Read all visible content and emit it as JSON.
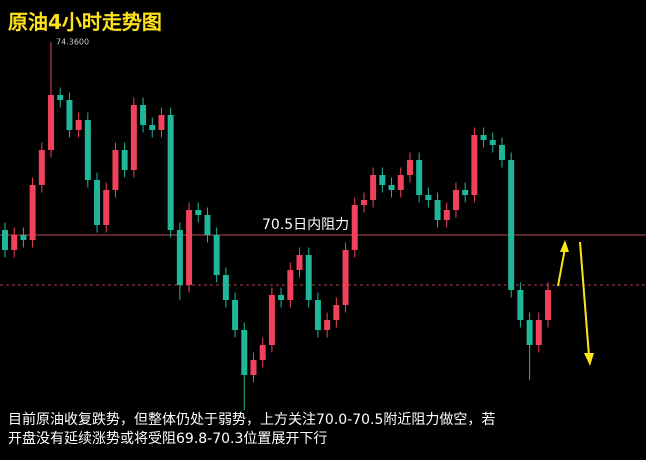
{
  "chart_data": {
    "type": "candlestick",
    "title": "原油4小时走势图",
    "ylim": [
      67,
      75.2
    ],
    "up_color": "#f0425d",
    "down_color": "#1fb69a",
    "open": [
      70.6,
      70.2,
      70.5,
      70.4,
      71.5,
      72.2,
      73.3,
      73.2,
      72.6,
      72.8,
      71.6,
      70.7,
      71.4,
      72.2,
      71.8,
      73.1,
      72.7,
      72.6,
      72.9,
      70.6,
      69.5,
      71.0,
      70.9,
      70.5,
      69.7,
      69.2,
      68.6,
      67.7,
      68.0,
      68.3,
      69.3,
      69.2,
      69.8,
      70.1,
      69.2,
      68.6,
      68.8,
      69.1,
      70.2,
      71.1,
      71.2,
      71.7,
      71.5,
      71.4,
      71.7,
      72.0,
      71.3,
      71.2,
      70.8,
      71.0,
      71.4,
      71.3,
      72.5,
      72.4,
      72.3,
      72.0,
      69.4,
      68.8,
      68.3,
      68.8
    ],
    "high": [
      70.75,
      70.65,
      70.65,
      71.65,
      72.35,
      74.36,
      73.45,
      73.35,
      72.95,
      72.95,
      71.75,
      71.55,
      72.35,
      72.35,
      73.25,
      73.25,
      72.85,
      73.05,
      73.05,
      70.75,
      71.15,
      71.15,
      71.05,
      70.65,
      69.85,
      69.35,
      68.75,
      68.15,
      68.45,
      69.45,
      69.45,
      69.95,
      70.25,
      70.25,
      69.35,
      68.95,
      69.25,
      70.35,
      71.25,
      71.35,
      71.85,
      71.85,
      71.65,
      71.85,
      72.15,
      72.15,
      71.45,
      71.35,
      71.15,
      71.55,
      71.55,
      72.65,
      72.65,
      72.55,
      72.45,
      72.15,
      69.55,
      68.95,
      68.95,
      69.55
    ],
    "low": [
      70.05,
      70.05,
      70.25,
      70.25,
      71.35,
      72.05,
      73.05,
      72.45,
      72.45,
      71.45,
      70.55,
      70.55,
      71.25,
      71.65,
      71.65,
      72.55,
      72.45,
      72.45,
      70.45,
      69.2,
      69.35,
      70.75,
      70.35,
      69.55,
      69.05,
      68.45,
      67.0,
      67.55,
      67.85,
      68.15,
      69.05,
      69.05,
      69.65,
      69.05,
      68.45,
      68.45,
      68.65,
      68.95,
      70.05,
      70.95,
      71.05,
      71.35,
      71.25,
      71.25,
      71.55,
      71.15,
      71.05,
      70.65,
      70.65,
      70.85,
      71.15,
      71.15,
      72.25,
      72.15,
      71.85,
      69.25,
      68.65,
      67.6,
      68.15,
      68.65
    ],
    "close": [
      70.2,
      70.5,
      70.4,
      71.5,
      72.2,
      73.3,
      73.2,
      72.6,
      72.8,
      71.6,
      70.7,
      71.4,
      72.2,
      71.8,
      73.1,
      72.7,
      72.6,
      72.9,
      70.6,
      69.5,
      71.0,
      70.9,
      70.5,
      69.7,
      69.2,
      68.6,
      67.7,
      68.0,
      68.3,
      69.3,
      69.2,
      69.8,
      70.1,
      69.2,
      68.6,
      68.8,
      69.1,
      70.2,
      71.1,
      71.2,
      71.7,
      71.5,
      71.4,
      71.7,
      72.0,
      71.3,
      71.2,
      70.8,
      71.0,
      71.4,
      71.3,
      72.5,
      72.4,
      72.3,
      72.0,
      69.4,
      68.8,
      68.3,
      68.8,
      69.4
    ],
    "max_label": {
      "value": 74.36,
      "label": "74.3600"
    },
    "resistance": {
      "value": 70.5,
      "label": "70.5日内阻力",
      "color": "#b84a55"
    },
    "support_line": {
      "value": 69.5,
      "color": "#a8434e"
    },
    "comment": [
      "目前原油收复跌势，但整体仍处于弱势，上方关注70.0-70.5附近阻力做空，若",
      "开盘没有延续涨势或将受阻69.8-70.3位置展开下行"
    ]
  }
}
